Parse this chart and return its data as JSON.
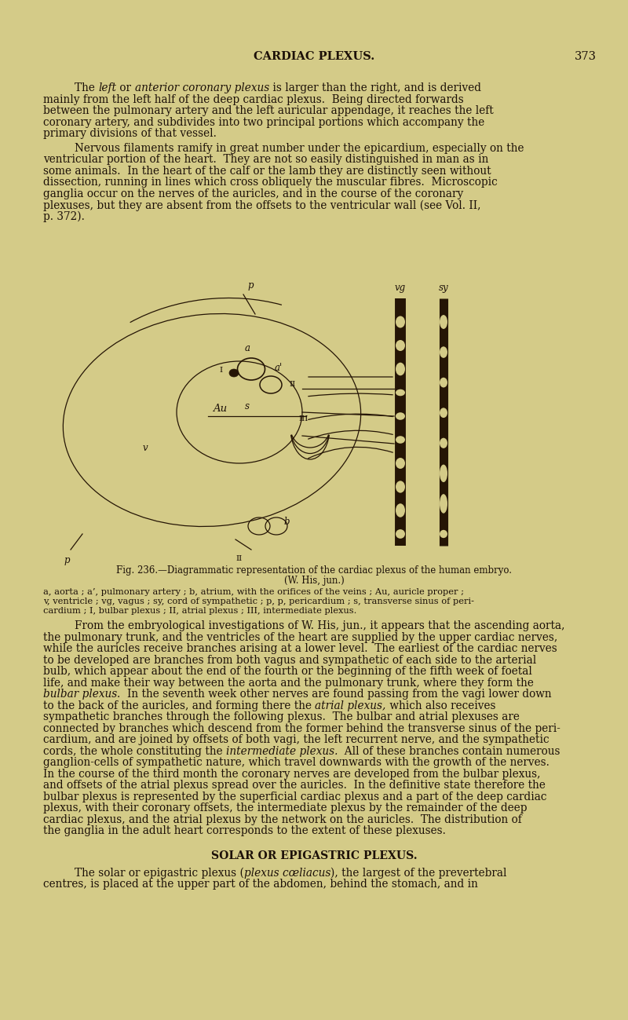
{
  "bg_color": "#d4cb88",
  "text_color": "#1c1008",
  "diagram_color": "#251505",
  "header_text": "CARDIAC PLEXUS.",
  "header_page": "373",
  "body_fontsize": 9.8,
  "caption_fontsize": 8.5,
  "small_caption_fontsize": 8.2,
  "header_fontsize": 10.5,
  "section_header": "SOLAR OR EPIGASTRIC PLEXUS.",
  "fig_caption_line1": "Fig. 236.—Diagrammatic representation of the cardiac plexus of the human embryo.",
  "fig_caption_line2": "(W. His, jun.)",
  "fig_caption_line3": "a, aorta ; a’, pulmonary artery ; b, atrium, with the orifices of the veins ; Au, auricle proper ;",
  "fig_caption_line4": "v, ventricle ; vg, vagus ; sy, cord of sympathetic ; p, p, pericardium ; s, transverse sinus of peri-",
  "fig_caption_line5": "cardium ; I, bulbar plexus ; II, atrial plexus ; III, intermediate plexus."
}
